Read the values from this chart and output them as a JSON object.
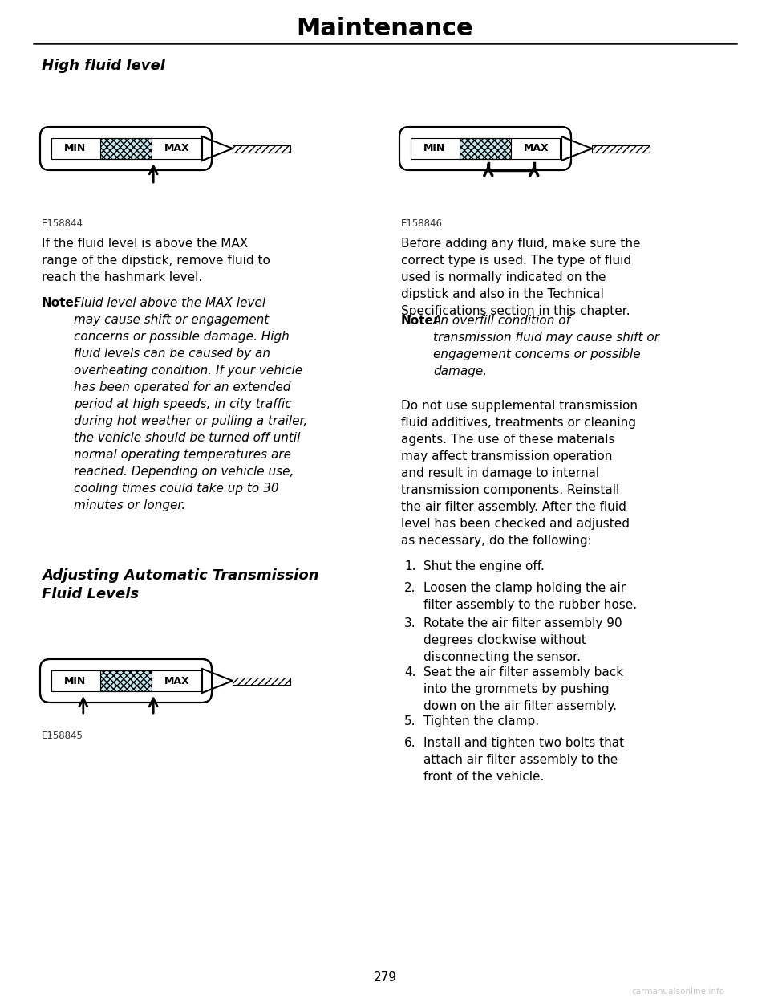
{
  "title": "Maintenance",
  "section1_heading": "High fluid level",
  "fig1_label": "E158844",
  "fig2_label": "E158845",
  "fig3_label": "E158846",
  "para1": "If the fluid level is above the MAX\nrange of the dipstick, remove fluid to\nreach the hashmark level.",
  "note1_bold": "Note:",
  "note1_italic": "Fluid level above the MAX level\nmay cause shift or engagement\nconcerns or possible damage. High\nfluid levels can be caused by an\noverheating condition. If your vehicle\nhas been operated for an extended\nperiod at high speeds, in city traffic\nduring hot weather or pulling a trailer,\nthe vehicle should be turned off until\nnormal operating temperatures are\nreached. Depending on vehicle use,\ncooling times could take up to 30\nminutes or longer.",
  "section2_heading": "Adjusting Automatic Transmission\nFluid Levels",
  "right_para1": "Before adding any fluid, make sure the\ncorrect type is used. The type of fluid\nused is normally indicated on the\ndipstick and also in the Technical\nSpecifications section in this chapter.",
  "right_note_bold": "Note:",
  "right_note_italic": "An overfill condition of\ntransmission fluid may cause shift or\nengagement concerns or possible\ndamage.",
  "right_para2": "Do not use supplemental transmission\nfluid additives, treatments or cleaning\nagents. The use of these materials\nmay affect transmission operation\nand result in damage to internal\ntransmission components. Reinstall\nthe air filter assembly. After the fluid\nlevel has been checked and adjusted\nas necessary, do the following:",
  "list_items": [
    "Shut the engine off.",
    "Loosen the clamp holding the air\nfilter assembly to the rubber hose.",
    "Rotate the air filter assembly 90\ndegrees clockwise without\ndisconnecting the sensor.",
    "Seat the air filter assembly back\ninto the grommets by pushing\ndown on the air filter assembly.",
    "Tighten the clamp.",
    "Install and tighten two bolts that\nattach air filter assembly to the\nfront of the vehicle."
  ],
  "page_number": "279",
  "watermark": "carmanualsonline.info",
  "bg_color": "#ffffff",
  "text_color": "#000000",
  "dipstick_fill_color": "#c5e8ee"
}
